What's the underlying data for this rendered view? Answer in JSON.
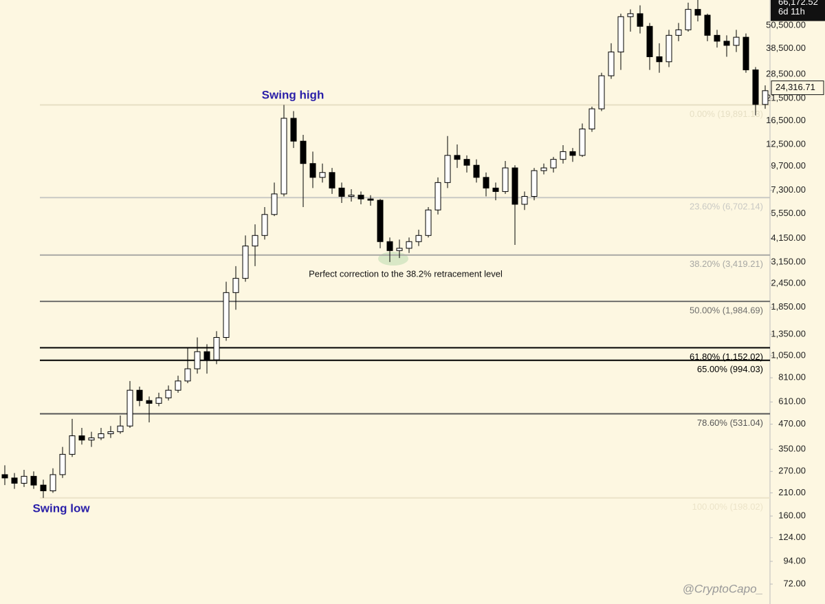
{
  "chart_data": {
    "type": "candlestick",
    "log": true,
    "ylim": [
      57,
      68100
    ],
    "up_color": "#ffffff",
    "down_color": "#000000",
    "wick_color": "#000000",
    "open": [
      260,
      250,
      235,
      255,
      230,
      215,
      260,
      330,
      410,
      390,
      400,
      420,
      430,
      460,
      700,
      620,
      600,
      640,
      700,
      780,
      900,
      1100,
      1000,
      1300,
      2200,
      2600,
      3800,
      4300,
      5500,
      7000,
      17000,
      13000,
      10000,
      8500,
      9000,
      7500,
      6800,
      6900,
      6600,
      6500,
      4000,
      3600,
      3700,
      4000,
      4300,
      5800,
      8000,
      11000,
      10500,
      9800,
      8500,
      7500,
      7200,
      9500,
      6200,
      6800,
      9200,
      9500,
      10500,
      11500,
      11000,
      15000,
      19000,
      28000,
      37000,
      56000,
      58000,
      50000,
      35000,
      33000,
      45000,
      48000,
      61000,
      57000,
      45000,
      42000,
      40000,
      44000,
      30000,
      20000
    ],
    "high": [
      290,
      265,
      275,
      270,
      245,
      280,
      360,
      500,
      450,
      430,
      450,
      460,
      520,
      780,
      730,
      650,
      680,
      740,
      830,
      1150,
      1300,
      1200,
      1400,
      2500,
      3000,
      4300,
      4900,
      6000,
      8000,
      19891,
      18500,
      14000,
      11500,
      10000,
      9500,
      8000,
      7400,
      7200,
      6900,
      6600,
      4200,
      4100,
      4200,
      4600,
      6000,
      8500,
      13800,
      12500,
      11000,
      10500,
      9000,
      8000,
      10300,
      9800,
      7200,
      9500,
      10000,
      10800,
      12400,
      12000,
      16000,
      19500,
      29000,
      41000,
      58000,
      61000,
      64000,
      52000,
      41000,
      48000,
      52000,
      66000,
      69000,
      58000,
      48000,
      45000,
      48000,
      46000,
      31000,
      25000
    ],
    "low": [
      230,
      220,
      225,
      220,
      198,
      210,
      250,
      320,
      370,
      360,
      390,
      400,
      420,
      450,
      580,
      480,
      580,
      620,
      680,
      760,
      850,
      850,
      950,
      1250,
      1800,
      2500,
      3000,
      4100,
      5400,
      6800,
      12000,
      6000,
      7500,
      8000,
      7000,
      6300,
      6400,
      6200,
      6100,
      3700,
      3150,
      3300,
      3500,
      3800,
      4200,
      5500,
      7500,
      9500,
      9000,
      8000,
      6800,
      6500,
      7000,
      3850,
      5800,
      6500,
      8800,
      9000,
      10000,
      10200,
      10800,
      14500,
      18500,
      27000,
      30000,
      47000,
      46000,
      30000,
      29000,
      31000,
      42000,
      47000,
      53000,
      42000,
      39000,
      35000,
      37000,
      29000,
      17600,
      19000
    ],
    "close": [
      250,
      235,
      255,
      230,
      215,
      260,
      330,
      410,
      390,
      400,
      420,
      430,
      460,
      700,
      620,
      600,
      640,
      700,
      780,
      900,
      1100,
      1000,
      1300,
      2200,
      2600,
      3800,
      4300,
      5500,
      7000,
      17000,
      13000,
      10000,
      8500,
      9000,
      7500,
      6800,
      6900,
      6600,
      6500,
      4000,
      3600,
      3700,
      4000,
      4300,
      5800,
      8000,
      11000,
      10500,
      9800,
      8500,
      7500,
      7200,
      9500,
      6200,
      6800,
      9200,
      9500,
      10500,
      11500,
      11000,
      15000,
      19000,
      28000,
      37000,
      56000,
      58000,
      50000,
      35000,
      33000,
      45000,
      48000,
      61000,
      57000,
      45000,
      42000,
      40000,
      44000,
      30000,
      20000,
      23500
    ],
    "yticks": [
      {
        "value": 72,
        "label": "72.00"
      },
      {
        "value": 94,
        "label": "94.00"
      },
      {
        "value": 124,
        "label": "124.00"
      },
      {
        "value": 160,
        "label": "160.00"
      },
      {
        "value": 210,
        "label": "210.00"
      },
      {
        "value": 270,
        "label": "270.00"
      },
      {
        "value": 350,
        "label": "350.00"
      },
      {
        "value": 470,
        "label": "470.00"
      },
      {
        "value": 610,
        "label": "610.00"
      },
      {
        "value": 810,
        "label": "810.00"
      },
      {
        "value": 1050,
        "label": "1,050.00"
      },
      {
        "value": 1350,
        "label": "1,350.00"
      },
      {
        "value": 1850,
        "label": "1,850.00"
      },
      {
        "value": 2450,
        "label": "2,450.00"
      },
      {
        "value": 3150,
        "label": "3,150.00"
      },
      {
        "value": 4150,
        "label": "4,150.00"
      },
      {
        "value": 5550,
        "label": "5,550.00"
      },
      {
        "value": 7300,
        "label": "7,300.00"
      },
      {
        "value": 9700,
        "label": "9,700.00"
      },
      {
        "value": 12500,
        "label": "12,500.00"
      },
      {
        "value": 16500,
        "label": "16,500.00"
      },
      {
        "value": 21500,
        "label": "21,500.00"
      },
      {
        "value": 28500,
        "label": "28,500.00"
      },
      {
        "value": 38500,
        "label": "38,500.00"
      },
      {
        "value": 50500,
        "label": "50,500.00"
      }
    ],
    "levels": [
      {
        "value": 19891.13,
        "label": "0.00% (19,891.13)",
        "color": "#e6dfc4"
      },
      {
        "value": 6702.14,
        "label": "23.60% (6,702.14)",
        "color": "#c9c9c4"
      },
      {
        "value": 3419.21,
        "label": "38.20% (3,419.21)",
        "color": "#a8a8a4"
      },
      {
        "value": 1984.69,
        "label": "50.00% (1,984.69)",
        "color": "#6e6e6c"
      },
      {
        "value": 1152.02,
        "label": "61.80% (1,152.02)",
        "color": "#000000"
      },
      {
        "value": 994.03,
        "label": "65.00% (994.03)",
        "color": "#000000"
      },
      {
        "value": 531.04,
        "label": "78.60% (531.04)",
        "color": "#555555"
      },
      {
        "value": 198.02,
        "label": "100.00% (198.02)",
        "color": "#ece4c9"
      }
    ],
    "price_marker": {
      "value": 66172.52,
      "label": "66,172.52",
      "countdown": "6d 11h"
    },
    "last_price": {
      "value": 24316.71,
      "label": "24,316.71"
    },
    "annotations": [
      "Swing high",
      "Swing low",
      "Perfect correction to the 38.2% retracement level"
    ],
    "watermark": "@CryptoCapo_"
  }
}
